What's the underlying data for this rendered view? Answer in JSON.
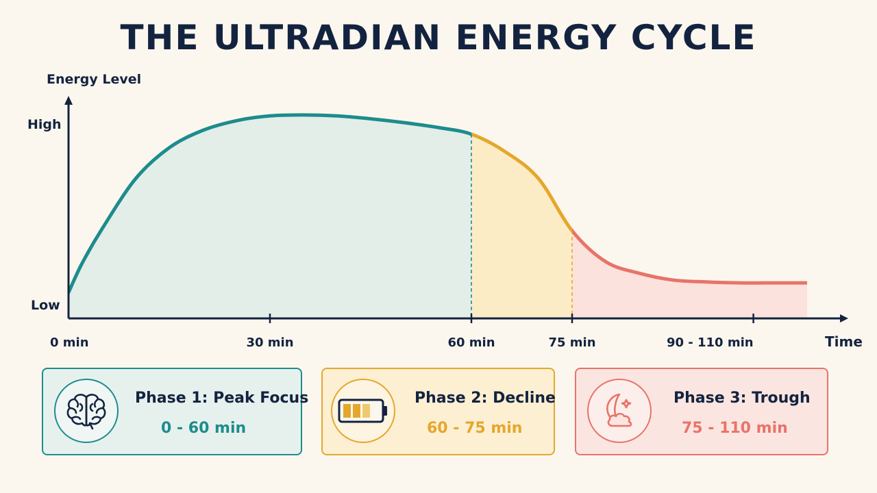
{
  "title": "THE ULTRADIAN ENERGY CYCLE",
  "colors": {
    "phase1": "#1d8c8c",
    "phase2": "#e5a72b",
    "phase3": "#e8736a",
    "axis": "#13233f"
  },
  "chart_data": {
    "type": "area",
    "ylabel": "Energy Level",
    "xlabel": "Time",
    "y_tick_labels": [
      "High",
      "Low"
    ],
    "x_ticks": [
      {
        "value": 0,
        "label": "0 min"
      },
      {
        "value": 30,
        "label": "30 min"
      },
      {
        "value": 60,
        "label": "60 min"
      },
      {
        "value": 75,
        "label": "75 min"
      },
      {
        "value": 102,
        "label": "90 - 110 min"
      }
    ],
    "xlim": [
      0,
      110
    ],
    "ylim": [
      0,
      1
    ],
    "series": [
      {
        "x": [
          0,
          2,
          5,
          10,
          15,
          20,
          25,
          30,
          35,
          40,
          45,
          50,
          55,
          60,
          65,
          70,
          75,
          80,
          85,
          90,
          95,
          100,
          104,
          110
        ],
        "y": [
          0.07,
          0.22,
          0.4,
          0.66,
          0.82,
          0.91,
          0.96,
          0.985,
          0.99,
          0.985,
          0.97,
          0.95,
          0.925,
          0.89,
          0.8,
          0.66,
          0.39,
          0.23,
          0.17,
          0.135,
          0.125,
          0.12,
          0.12,
          0.12
        ]
      }
    ],
    "phases": [
      {
        "start": 0,
        "end": 60
      },
      {
        "start": 60,
        "end": 75
      },
      {
        "start": 75,
        "end": 110
      }
    ]
  },
  "cards": [
    {
      "title": "Phase 1: Peak Focus",
      "range": "0 - 60 min",
      "icon": "brain-icon"
    },
    {
      "title": "Phase 2: Decline",
      "range": "60 - 75 min",
      "icon": "battery-icon"
    },
    {
      "title": "Phase 3: Trough",
      "range": "75 - 110 min",
      "icon": "moon-cloud-icon"
    }
  ]
}
